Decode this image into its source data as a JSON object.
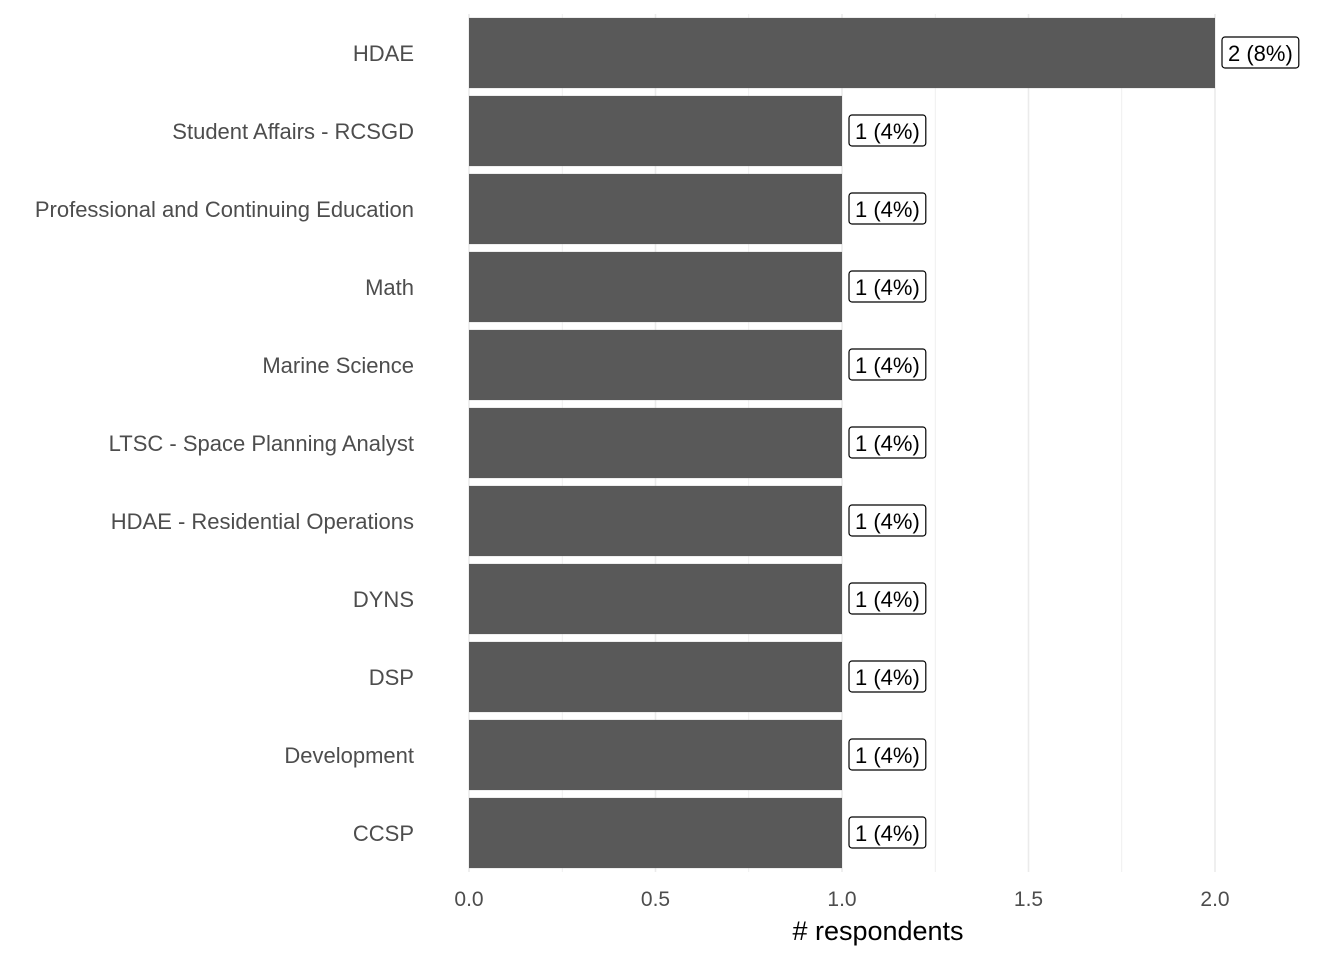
{
  "chart_data": {
    "type": "bar",
    "orientation": "horizontal",
    "categories": [
      "HDAE",
      "Student Affairs - RCSGD",
      "Professional and Continuing Education",
      "Math",
      "Marine Science",
      "LTSC - Space Planning Analyst",
      "HDAE - Residential Operations",
      "DYNS",
      "DSP",
      "Development",
      "CCSP"
    ],
    "values": [
      2,
      1,
      1,
      1,
      1,
      1,
      1,
      1,
      1,
      1,
      1
    ],
    "data_labels": [
      "2 (8%)",
      "1 (4%)",
      "1 (4%)",
      "1 (4%)",
      "1 (4%)",
      "1 (4%)",
      "1 (4%)",
      "1 (4%)",
      "1 (4%)",
      "1 (4%)",
      "1 (4%)"
    ],
    "xlabel": "# respondents",
    "xlim": [
      0,
      2.2
    ],
    "xticks": [
      0,
      0.5,
      1.0,
      1.5,
      2.0
    ],
    "xtick_labels": [
      "0.0",
      "0.5",
      "1.0",
      "1.5",
      "2.0"
    ],
    "grid": true,
    "bar_color": "#595959",
    "grid_color": "#ebebeb"
  }
}
